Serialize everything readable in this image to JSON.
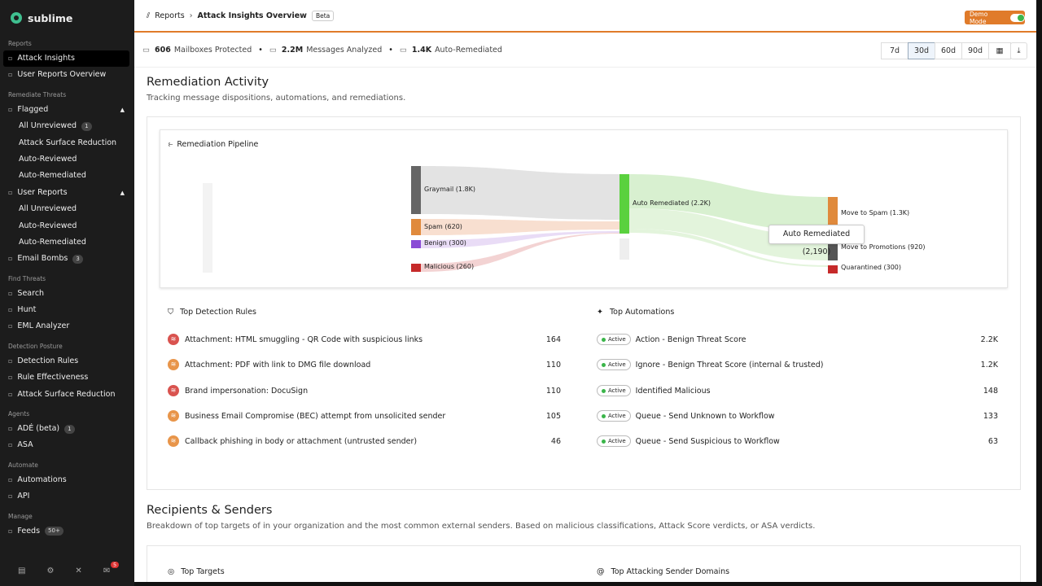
{
  "sidebar": {
    "brand": "sublime",
    "sections": [
      {
        "title": "Reports",
        "items": [
          {
            "label": "Attack Insights"
          },
          {
            "label": "User Reports Overview"
          }
        ]
      },
      {
        "title": "Remediate Threats",
        "items": [
          {
            "label": "Flagged",
            "sub": [
              {
                "label": "All Unreviewed",
                "badge": "1"
              },
              {
                "label": "Attack Surface Reduction"
              },
              {
                "label": "Auto-Reviewed"
              },
              {
                "label": "Auto-Remediated"
              }
            ]
          },
          {
            "label": "User Reports",
            "sub": [
              {
                "label": "All Unreviewed"
              },
              {
                "label": "Auto-Reviewed"
              },
              {
                "label": "Auto-Remediated"
              }
            ]
          },
          {
            "label": "Email Bombs",
            "badge": "3"
          }
        ]
      },
      {
        "title": "Find Threats",
        "items": [
          {
            "label": "Search"
          },
          {
            "label": "Hunt"
          },
          {
            "label": "EML Analyzer"
          }
        ]
      },
      {
        "title": "Detection Posture",
        "items": [
          {
            "label": "Detection Rules"
          },
          {
            "label": "Rule Effectiveness"
          },
          {
            "label": "Attack Surface Reduction"
          }
        ]
      },
      {
        "title": "Agents",
        "items": [
          {
            "label": "ADÉ (beta)",
            "badge": "1"
          },
          {
            "label": "ASA"
          }
        ]
      },
      {
        "title": "Automate",
        "items": [
          {
            "label": "Automations"
          },
          {
            "label": "API"
          }
        ]
      },
      {
        "title": "Manage",
        "items": [
          {
            "label": "Feeds",
            "badge": "50+"
          }
        ]
      }
    ],
    "notifications": "5"
  },
  "header": {
    "breadcrumb": "Reports",
    "title": "Attack Insights Overview",
    "badge": "Beta",
    "demo": "Demo Mode"
  },
  "stats": [
    {
      "value": "606",
      "label": "Mailboxes Protected"
    },
    {
      "value": "2.2M",
      "label": "Messages Analyzed"
    },
    {
      "value": "1.4K",
      "label": "Auto-Remediated"
    }
  ],
  "ranges": [
    "7d",
    "30d",
    "60d",
    "90d"
  ],
  "remediation": {
    "title": "Remediation Activity",
    "subtitle": "Tracking message dispositions, automations, and remediations.",
    "pipeline": {
      "title": "Remediation Pipeline",
      "sources": [
        "Graymail (1.8K)",
        "Spam (620)",
        "Benign (300)",
        "Malicious (260)"
      ],
      "middle": "Auto Remediated (2.2K)",
      "targets": [
        "Move to Spam (1.3K)",
        "Move to Promotions (920)",
        "Quarantined (300)"
      ],
      "tooltip": "Auto Remediated (2,190)"
    },
    "rules": {
      "title": "Top Detection Rules",
      "rows": [
        {
          "name": "Attachment: HTML smuggling - QR Code with suspicious links",
          "count": 164,
          "color": "#d9534f"
        },
        {
          "name": "Attachment: PDF with link to DMG file download",
          "count": 110,
          "color": "#e8954a"
        },
        {
          "name": "Brand impersonation: DocuSign",
          "count": 110,
          "color": "#d9534f"
        },
        {
          "name": "Business Email Compromise (BEC) attempt from unsolicited sender",
          "count": 105,
          "color": "#e8954a"
        },
        {
          "name": "Callback phishing in body or attachment (untrusted sender)",
          "count": 46,
          "color": "#e8954a"
        }
      ]
    },
    "automations": {
      "title": "Top Automations",
      "rows": [
        {
          "status": "Active",
          "name": "Action - Benign Threat Score",
          "count": "2.2K"
        },
        {
          "status": "Active",
          "name": "Ignore - Benign Threat Score (internal & trusted)",
          "count": "1.2K"
        },
        {
          "status": "Active",
          "name": "Identified Malicious",
          "count": 148
        },
        {
          "status": "Active",
          "name": "Queue - Send Unknown to Workflow",
          "count": 133
        },
        {
          "status": "Active",
          "name": "Queue - Send Suspicious to Workflow",
          "count": 63
        }
      ]
    }
  },
  "recipients": {
    "title": "Recipients & Senders",
    "subtitle": "Breakdown of top targets of in your organization and the most common external senders. Based on malicious classifications, Attack Score verdicts, or ASA verdicts.",
    "targets": "Top Targets",
    "domains": "Top Attacking Sender Domains"
  }
}
